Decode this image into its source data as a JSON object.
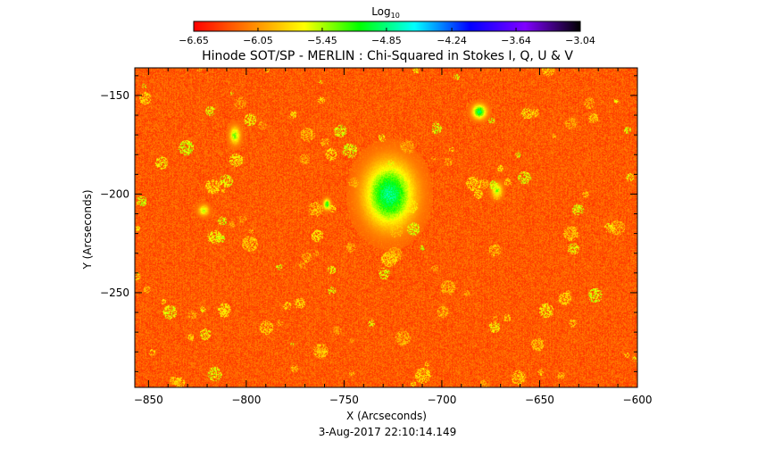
{
  "chart_data": {
    "type": "heatmap",
    "title": "Hinode SOT/SP - MERLIN : Chi-Squared in Stokes I, Q, U & V",
    "xlabel": "X (Arcseconds)",
    "ylabel": "Y (Arcseconds)",
    "xlim": [
      -857,
      -600
    ],
    "ylim": [
      -298,
      -136
    ],
    "x_ticks": [
      -850,
      -800,
      -750,
      -700,
      -650,
      -600
    ],
    "y_ticks": [
      -150,
      -200,
      -250
    ],
    "x_tick_labels": [
      "−850",
      "−800",
      "−750",
      "−700",
      "−650",
      "−600"
    ],
    "y_tick_labels": [
      "−150",
      "−200",
      "−250"
    ],
    "colorbar": {
      "label_main": "Log",
      "label_sub": "10",
      "range": [
        -6.65,
        -3.04
      ],
      "ticks": [
        -6.65,
        -6.05,
        -5.45,
        -4.85,
        -4.24,
        -3.64,
        -3.04
      ],
      "tick_labels": [
        "−6.65",
        "−6.05",
        "−5.45",
        "−4.85",
        "−4.24",
        "−3.64",
        "−3.04"
      ],
      "colormap": [
        "#ff0000",
        "#ff8000",
        "#ffff00",
        "#00ff00",
        "#00ffff",
        "#0000ff",
        "#8000ff",
        "#000000"
      ]
    },
    "background_level": -6.3,
    "features": [
      {
        "x": -727,
        "y": -200,
        "rx": 14,
        "ry": 18,
        "value": -4.85
      },
      {
        "x": -681,
        "y": -158,
        "rx": 4,
        "ry": 4,
        "value": -4.95
      },
      {
        "x": -759,
        "y": -205,
        "rx": 2,
        "ry": 3,
        "value": -5.1
      },
      {
        "x": -806,
        "y": -170,
        "rx": 3,
        "ry": 5,
        "value": -5.35
      },
      {
        "x": -672,
        "y": -198,
        "rx": 3,
        "ry": 4,
        "value": -5.4
      },
      {
        "x": -822,
        "y": -208,
        "rx": 3,
        "ry": 3,
        "value": -5.5
      }
    ],
    "grid": false,
    "legend": "none",
    "footer": "3-Aug-2017 22:10:14.149"
  }
}
